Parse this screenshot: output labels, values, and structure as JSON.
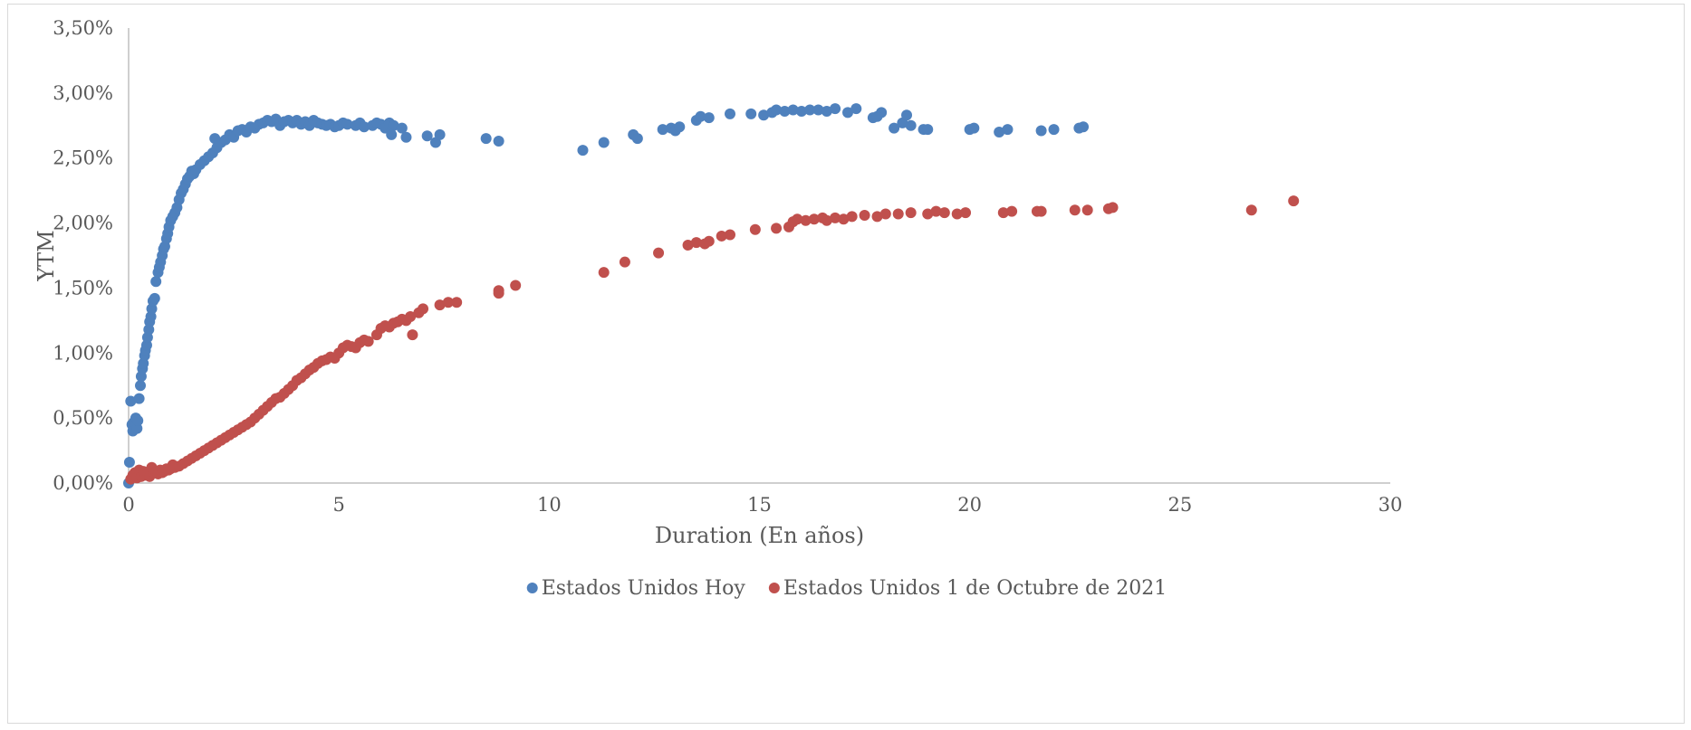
{
  "chart_data": {
    "type": "scatter",
    "title": "",
    "xlabel": "Duration (En años)",
    "ylabel": "YTM",
    "xlim": [
      0,
      30
    ],
    "ylim": [
      0,
      0.035
    ],
    "x_ticks": [
      0,
      5,
      10,
      15,
      20,
      25,
      30
    ],
    "y_ticks": [
      0,
      0.005,
      0.01,
      0.015,
      0.02,
      0.025,
      0.03,
      0.035
    ],
    "x_tick_labels": [
      "0",
      "5",
      "10",
      "15",
      "20",
      "25",
      "30"
    ],
    "y_tick_labels": [
      "0,00%",
      "0,50%",
      "1,00%",
      "1,50%",
      "2,00%",
      "2,50%",
      "3,00%",
      "3,50%"
    ],
    "grid": false,
    "legend_position": "bottom",
    "series": [
      {
        "name": "Estados Unidos Hoy",
        "color": "#4f81bd",
        "points": [
          [
            0.0,
            0.0
          ],
          [
            0.02,
            0.0016
          ],
          [
            0.05,
            0.0063
          ],
          [
            0.08,
            0.0045
          ],
          [
            0.1,
            0.004
          ],
          [
            0.13,
            0.0047
          ],
          [
            0.17,
            0.005
          ],
          [
            0.2,
            0.0042
          ],
          [
            0.22,
            0.0048
          ],
          [
            0.25,
            0.0065
          ],
          [
            0.28,
            0.0075
          ],
          [
            0.3,
            0.0082
          ],
          [
            0.33,
            0.0088
          ],
          [
            0.35,
            0.0092
          ],
          [
            0.38,
            0.0098
          ],
          [
            0.4,
            0.0102
          ],
          [
            0.43,
            0.0106
          ],
          [
            0.45,
            0.0112
          ],
          [
            0.48,
            0.0118
          ],
          [
            0.5,
            0.0124
          ],
          [
            0.53,
            0.0128
          ],
          [
            0.55,
            0.0134
          ],
          [
            0.58,
            0.014
          ],
          [
            0.62,
            0.0142
          ],
          [
            0.65,
            0.0155
          ],
          [
            0.7,
            0.0162
          ],
          [
            0.73,
            0.0166
          ],
          [
            0.76,
            0.017
          ],
          [
            0.8,
            0.0175
          ],
          [
            0.83,
            0.018
          ],
          [
            0.86,
            0.0182
          ],
          [
            0.9,
            0.0188
          ],
          [
            0.93,
            0.0192
          ],
          [
            0.96,
            0.0197
          ],
          [
            1.0,
            0.0202
          ],
          [
            1.05,
            0.0205
          ],
          [
            1.1,
            0.0208
          ],
          [
            1.15,
            0.0212
          ],
          [
            1.2,
            0.0218
          ],
          [
            1.25,
            0.0223
          ],
          [
            1.3,
            0.0226
          ],
          [
            1.35,
            0.023
          ],
          [
            1.4,
            0.0234
          ],
          [
            1.45,
            0.0236
          ],
          [
            1.5,
            0.024
          ],
          [
            1.55,
            0.0238
          ],
          [
            1.6,
            0.0241
          ],
          [
            1.7,
            0.0245
          ],
          [
            1.8,
            0.0248
          ],
          [
            1.9,
            0.0251
          ],
          [
            2.0,
            0.0254
          ],
          [
            2.05,
            0.0265
          ],
          [
            2.1,
            0.0258
          ],
          [
            2.2,
            0.0262
          ],
          [
            2.3,
            0.0264
          ],
          [
            2.4,
            0.0268
          ],
          [
            2.5,
            0.0266
          ],
          [
            2.6,
            0.0271
          ],
          [
            2.7,
            0.0272
          ],
          [
            2.8,
            0.027
          ],
          [
            2.9,
            0.0274
          ],
          [
            3.0,
            0.0273
          ],
          [
            3.1,
            0.0276
          ],
          [
            3.2,
            0.0277
          ],
          [
            3.3,
            0.0279
          ],
          [
            3.4,
            0.0278
          ],
          [
            3.5,
            0.028
          ],
          [
            3.6,
            0.0275
          ],
          [
            3.7,
            0.0278
          ],
          [
            3.8,
            0.0279
          ],
          [
            3.9,
            0.0277
          ],
          [
            4.0,
            0.0279
          ],
          [
            4.1,
            0.0276
          ],
          [
            4.2,
            0.0278
          ],
          [
            4.3,
            0.0275
          ],
          [
            4.4,
            0.0279
          ],
          [
            4.5,
            0.0277
          ],
          [
            4.6,
            0.0276
          ],
          [
            4.7,
            0.0275
          ],
          [
            4.8,
            0.0276
          ],
          [
            4.9,
            0.0274
          ],
          [
            5.0,
            0.0275
          ],
          [
            5.1,
            0.0277
          ],
          [
            5.2,
            0.0276
          ],
          [
            5.4,
            0.0275
          ],
          [
            5.5,
            0.0277
          ],
          [
            5.6,
            0.0274
          ],
          [
            5.8,
            0.0275
          ],
          [
            5.9,
            0.0277
          ],
          [
            6.0,
            0.0276
          ],
          [
            6.1,
            0.0273
          ],
          [
            6.2,
            0.0277
          ],
          [
            6.3,
            0.0275
          ],
          [
            6.25,
            0.0268
          ],
          [
            6.5,
            0.0273
          ],
          [
            6.6,
            0.0266
          ],
          [
            7.1,
            0.0267
          ],
          [
            7.3,
            0.0262
          ],
          [
            7.4,
            0.0268
          ],
          [
            8.5,
            0.0265
          ],
          [
            8.8,
            0.0263
          ],
          [
            10.8,
            0.0256
          ],
          [
            11.3,
            0.0262
          ],
          [
            12.0,
            0.0268
          ],
          [
            12.1,
            0.0265
          ],
          [
            12.7,
            0.0272
          ],
          [
            12.9,
            0.0273
          ],
          [
            13.0,
            0.0271
          ],
          [
            13.1,
            0.0274
          ],
          [
            13.5,
            0.0279
          ],
          [
            13.6,
            0.0282
          ],
          [
            13.8,
            0.0281
          ],
          [
            14.3,
            0.0284
          ],
          [
            14.8,
            0.0284
          ],
          [
            15.1,
            0.0283
          ],
          [
            15.3,
            0.0285
          ],
          [
            15.4,
            0.0287
          ],
          [
            15.6,
            0.0286
          ],
          [
            15.8,
            0.0287
          ],
          [
            16.0,
            0.0286
          ],
          [
            16.2,
            0.0287
          ],
          [
            16.4,
            0.0287
          ],
          [
            16.6,
            0.0286
          ],
          [
            16.8,
            0.0288
          ],
          [
            17.1,
            0.0285
          ],
          [
            17.3,
            0.0288
          ],
          [
            17.7,
            0.0281
          ],
          [
            17.9,
            0.0285
          ],
          [
            17.8,
            0.0282
          ],
          [
            18.2,
            0.0273
          ],
          [
            18.4,
            0.0277
          ],
          [
            18.5,
            0.0283
          ],
          [
            18.6,
            0.0275
          ],
          [
            18.9,
            0.0272
          ],
          [
            19.0,
            0.0272
          ],
          [
            20.0,
            0.0272
          ],
          [
            20.1,
            0.0273
          ],
          [
            20.7,
            0.027
          ],
          [
            20.9,
            0.0272
          ],
          [
            21.7,
            0.0271
          ],
          [
            22.0,
            0.0272
          ],
          [
            22.6,
            0.0273
          ],
          [
            22.7,
            0.0274
          ]
        ]
      },
      {
        "name": "Estados Unidos 1 de Octubre de 2021",
        "color": "#c0504d",
        "points": [
          [
            0.05,
            0.0003
          ],
          [
            0.1,
            0.0006
          ],
          [
            0.15,
            0.0008
          ],
          [
            0.2,
            0.0004
          ],
          [
            0.25,
            0.001
          ],
          [
            0.3,
            0.0005
          ],
          [
            0.35,
            0.0009
          ],
          [
            0.4,
            0.0006
          ],
          [
            0.45,
            0.0007
          ],
          [
            0.5,
            0.0005
          ],
          [
            0.55,
            0.0012
          ],
          [
            0.6,
            0.0008
          ],
          [
            0.65,
            0.0009
          ],
          [
            0.7,
            0.0007
          ],
          [
            0.75,
            0.001
          ],
          [
            0.8,
            0.0008
          ],
          [
            0.85,
            0.0009
          ],
          [
            0.9,
            0.0011
          ],
          [
            0.95,
            0.001
          ],
          [
            1.0,
            0.0011
          ],
          [
            1.05,
            0.0014
          ],
          [
            1.1,
            0.0012
          ],
          [
            1.2,
            0.0013
          ],
          [
            1.3,
            0.0015
          ],
          [
            1.4,
            0.0017
          ],
          [
            1.5,
            0.0019
          ],
          [
            1.6,
            0.0021
          ],
          [
            1.7,
            0.0023
          ],
          [
            1.8,
            0.0025
          ],
          [
            1.9,
            0.0027
          ],
          [
            2.0,
            0.0029
          ],
          [
            2.1,
            0.0031
          ],
          [
            2.2,
            0.0033
          ],
          [
            2.3,
            0.0035
          ],
          [
            2.4,
            0.0037
          ],
          [
            2.5,
            0.0039
          ],
          [
            2.6,
            0.0041
          ],
          [
            2.7,
            0.0043
          ],
          [
            2.8,
            0.0045
          ],
          [
            2.9,
            0.0047
          ],
          [
            3.0,
            0.005
          ],
          [
            3.1,
            0.0053
          ],
          [
            3.2,
            0.0056
          ],
          [
            3.3,
            0.0059
          ],
          [
            3.4,
            0.0062
          ],
          [
            3.5,
            0.0065
          ],
          [
            3.6,
            0.0066
          ],
          [
            3.7,
            0.0069
          ],
          [
            3.8,
            0.0072
          ],
          [
            3.9,
            0.0075
          ],
          [
            4.0,
            0.0079
          ],
          [
            4.1,
            0.0081
          ],
          [
            4.2,
            0.0084
          ],
          [
            4.3,
            0.0087
          ],
          [
            4.4,
            0.0089
          ],
          [
            4.5,
            0.0092
          ],
          [
            4.6,
            0.0094
          ],
          [
            4.7,
            0.0095
          ],
          [
            4.8,
            0.0097
          ],
          [
            4.9,
            0.0096
          ],
          [
            5.0,
            0.01
          ],
          [
            5.1,
            0.0104
          ],
          [
            5.2,
            0.0106
          ],
          [
            5.3,
            0.0105
          ],
          [
            5.4,
            0.0104
          ],
          [
            5.5,
            0.0108
          ],
          [
            5.6,
            0.011
          ],
          [
            5.7,
            0.0109
          ],
          [
            5.9,
            0.0114
          ],
          [
            6.0,
            0.0119
          ],
          [
            6.1,
            0.0121
          ],
          [
            6.2,
            0.012
          ],
          [
            6.3,
            0.0123
          ],
          [
            6.4,
            0.0124
          ],
          [
            6.5,
            0.0126
          ],
          [
            6.6,
            0.0125
          ],
          [
            6.7,
            0.0128
          ],
          [
            6.75,
            0.0114
          ],
          [
            6.9,
            0.0131
          ],
          [
            7.0,
            0.0134
          ],
          [
            7.4,
            0.0137
          ],
          [
            7.6,
            0.0139
          ],
          [
            7.8,
            0.0139
          ],
          [
            8.8,
            0.0146
          ],
          [
            8.8,
            0.0148
          ],
          [
            9.2,
            0.0152
          ],
          [
            11.3,
            0.0162
          ],
          [
            11.8,
            0.017
          ],
          [
            12.6,
            0.0177
          ],
          [
            13.3,
            0.0183
          ],
          [
            13.5,
            0.0185
          ],
          [
            13.7,
            0.0184
          ],
          [
            13.8,
            0.0186
          ],
          [
            14.1,
            0.019
          ],
          [
            14.3,
            0.0191
          ],
          [
            14.9,
            0.0195
          ],
          [
            15.4,
            0.0196
          ],
          [
            15.7,
            0.0197
          ],
          [
            15.8,
            0.0201
          ],
          [
            15.9,
            0.0203
          ],
          [
            16.1,
            0.0202
          ],
          [
            16.3,
            0.0203
          ],
          [
            16.5,
            0.0204
          ],
          [
            16.6,
            0.0202
          ],
          [
            16.8,
            0.0204
          ],
          [
            17.0,
            0.0203
          ],
          [
            17.2,
            0.0205
          ],
          [
            17.5,
            0.0206
          ],
          [
            17.8,
            0.0205
          ],
          [
            18.0,
            0.0207
          ],
          [
            18.3,
            0.0207
          ],
          [
            18.6,
            0.0208
          ],
          [
            19.0,
            0.0207
          ],
          [
            19.2,
            0.0209
          ],
          [
            19.4,
            0.0208
          ],
          [
            19.7,
            0.0207
          ],
          [
            19.9,
            0.0208
          ],
          [
            20.8,
            0.0208
          ],
          [
            21.0,
            0.0209
          ],
          [
            21.6,
            0.0209
          ],
          [
            21.7,
            0.0209
          ],
          [
            22.5,
            0.021
          ],
          [
            22.8,
            0.021
          ],
          [
            23.3,
            0.0211
          ],
          [
            23.4,
            0.0212
          ],
          [
            26.7,
            0.021
          ],
          [
            27.7,
            0.0217
          ]
        ]
      }
    ]
  }
}
